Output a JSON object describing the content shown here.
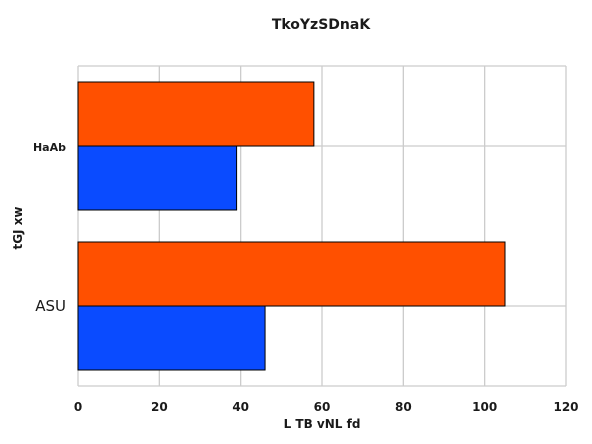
{
  "chart_data": {
    "type": "bar",
    "orientation": "horizontal",
    "title": "TkoYzSDnaK",
    "xlabel": "L TB vNL  fd",
    "ylabel": "tGJ xw",
    "categories": [
      "ASU",
      "HaAb"
    ],
    "series": [
      {
        "values": [
          46,
          39
        ],
        "color": "#0a4bff"
      },
      {
        "values": [
          105,
          58
        ],
        "color": "#ff5000"
      }
    ],
    "xlim": [
      0,
      120
    ],
    "xticks": [
      0,
      20,
      40,
      60,
      80,
      100,
      120
    ],
    "grid": true,
    "legend": "none"
  }
}
